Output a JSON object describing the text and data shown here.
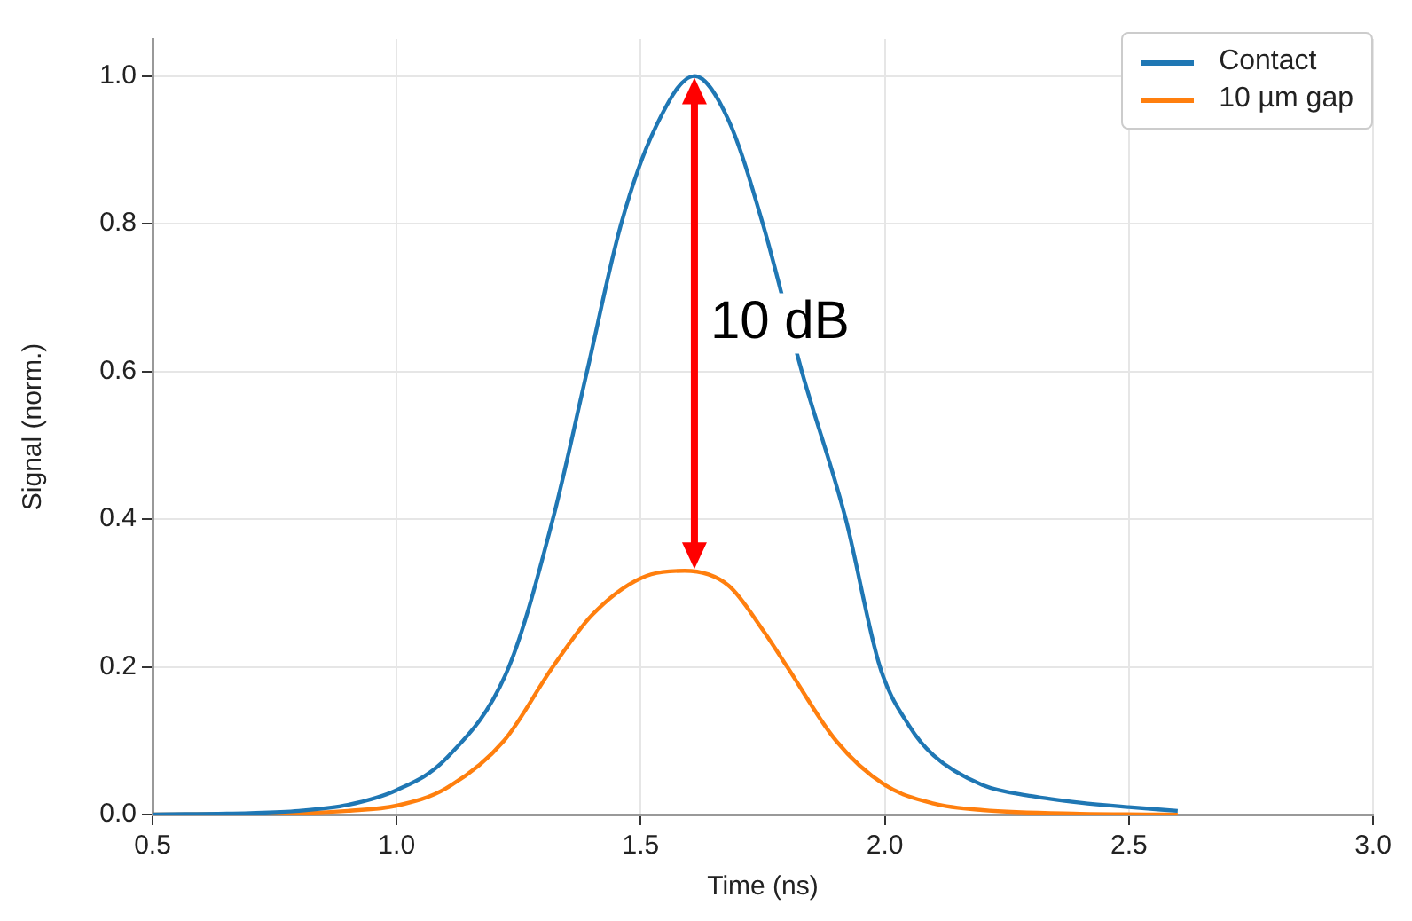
{
  "chart_data": {
    "type": "line",
    "xlabel": "Time (ns)",
    "ylabel": "Signal (norm.)",
    "xlim": [
      0.5,
      3.0
    ],
    "xticks": [
      0.5,
      {
        "value": 1,
        "label": "1.0"
      },
      1.5,
      {
        "value": 2,
        "label": "2.0"
      },
      2.5,
      {
        "value": 3,
        "label": "3.0"
      }
    ],
    "ylim": [
      0,
      1.05
    ],
    "yticks": [
      {
        "value": 0,
        "label": "0.0"
      },
      0.2,
      0.4,
      0.6,
      0.8,
      {
        "value": 1,
        "label": "1.0"
      }
    ],
    "grid": true,
    "legend": "top right",
    "marker": "none",
    "line_style": "solid",
    "annotations": [
      "10 dB"
    ],
    "series": [
      {
        "name": "Contact",
        "color": "#1f77b4",
        "x": [
          0.5,
          0.7,
          0.8,
          0.9,
          1.0,
          1.1,
          1.23,
          1.32,
          1.39,
          1.46,
          1.53,
          1.61,
          1.68,
          1.75,
          1.83,
          1.92,
          1.99,
          2.05,
          2.1,
          2.2,
          2.3,
          2.4,
          2.5,
          2.6
        ],
        "values": [
          0,
          0.002,
          0.005,
          0.013,
          0.033,
          0.075,
          0.2,
          0.4,
          0.6,
          0.8,
          0.93,
          1.0,
          0.94,
          0.8,
          0.6,
          0.4,
          0.2,
          0.12,
          0.08,
          0.04,
          0.025,
          0.016,
          0.01,
          0.005
        ]
      },
      {
        "name": "10 µm gap",
        "color": "#ff7f0e",
        "x": [
          0.5,
          0.8,
          0.9,
          1.0,
          1.1,
          1.22,
          1.32,
          1.4,
          1.5,
          1.59,
          1.68,
          1.75,
          1.8,
          1.9,
          2.0,
          2.1,
          2.2,
          2.4,
          2.6
        ],
        "values": [
          0,
          0.002,
          0.005,
          0.012,
          0.035,
          0.1,
          0.2,
          0.27,
          0.32,
          0.33,
          0.31,
          0.25,
          0.2,
          0.1,
          0.04,
          0.015,
          0.006,
          0.001,
          0
        ]
      }
    ]
  }
}
